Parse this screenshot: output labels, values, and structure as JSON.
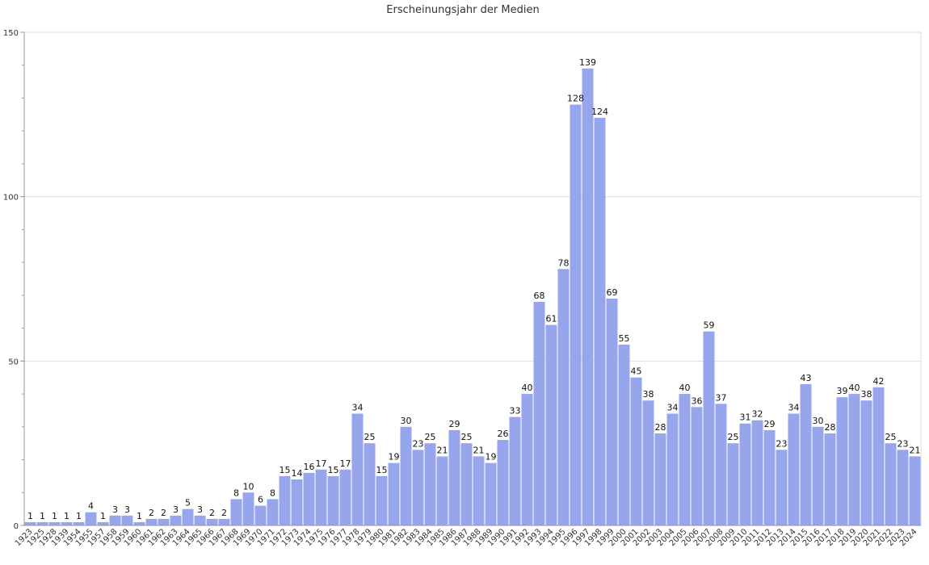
{
  "chart_data": {
    "type": "bar",
    "title": "Erscheinungsjahr der Medien",
    "xlabel": "",
    "ylabel": "",
    "ylim": [
      0,
      150
    ],
    "yticks": [
      0,
      50,
      100,
      150
    ],
    "grid": true,
    "colors": {
      "bar": "#97a6ec",
      "grid": "#dddddd",
      "axis": "#999999"
    },
    "categories": [
      "1923",
      "1925",
      "1928",
      "1939",
      "1954",
      "1955",
      "1957",
      "1958",
      "1959",
      "1960",
      "1961",
      "1962",
      "1963",
      "1964",
      "1965",
      "1966",
      "1967",
      "1968",
      "1969",
      "1970",
      "1971",
      "1972",
      "1973",
      "1974",
      "1975",
      "1976",
      "1977",
      "1978",
      "1979",
      "1980",
      "1981",
      "1982",
      "1983",
      "1984",
      "1985",
      "1986",
      "1987",
      "1988",
      "1989",
      "1990",
      "1991",
      "1992",
      "1993",
      "1994",
      "1995",
      "1996",
      "1997",
      "1998",
      "1999",
      "2000",
      "2001",
      "2002",
      "2003",
      "2004",
      "2005",
      "2006",
      "2007",
      "2008",
      "2009",
      "2010",
      "2011",
      "2012",
      "2013",
      "2014",
      "2015",
      "2016",
      "2017",
      "2018",
      "2019",
      "2020",
      "2021",
      "2022",
      "2023",
      "2024"
    ],
    "values": [
      1,
      1,
      1,
      1,
      1,
      4,
      1,
      3,
      3,
      1,
      2,
      2,
      3,
      5,
      3,
      2,
      2,
      8,
      10,
      6,
      8,
      15,
      14,
      16,
      17,
      15,
      17,
      34,
      25,
      15,
      19,
      30,
      23,
      25,
      21,
      29,
      25,
      21,
      19,
      26,
      33,
      40,
      68,
      61,
      78,
      128,
      139,
      124,
      69,
      55,
      45,
      38,
      28,
      34,
      40,
      36,
      59,
      37,
      25,
      31,
      32,
      29,
      23,
      34,
      43,
      30,
      28,
      39,
      40,
      38,
      42,
      25,
      23,
      21
    ]
  }
}
